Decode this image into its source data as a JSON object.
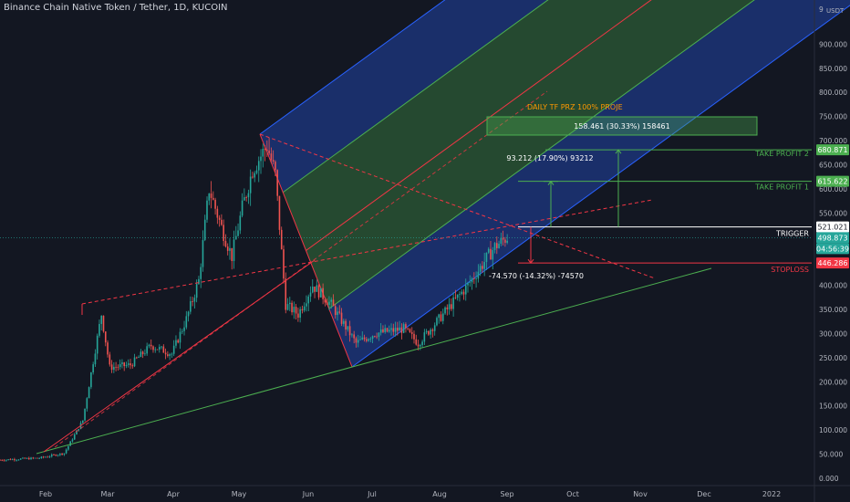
{
  "header": {
    "symbol_title": "Binance Chain Native Token / Tether, 1D, KUCOIN"
  },
  "chart_data": {
    "type": "candlestick",
    "symbol": "BNB/USDT",
    "interval": "1D",
    "exchange": "KUCOIN",
    "currency_label": "USDT",
    "y_axis_top_label": "9",
    "ylim": [
      0,
      1000
    ],
    "y_ticks": [
      0,
      50,
      100,
      150,
      200,
      250,
      300,
      350,
      400,
      450,
      500,
      550,
      600,
      650,
      700,
      750,
      800,
      850,
      900
    ],
    "y_tick_labels": [
      "0.000",
      "50.000",
      "100.000",
      "150.000",
      "200.000",
      "250.000",
      "300.000",
      "350.000",
      "400.000",
      "450.000",
      "500.000",
      "550.000",
      "600.000",
      "650.000",
      "700.000",
      "750.000",
      "800.000",
      "850.000",
      "900.000"
    ],
    "x_tick_labels": [
      "Feb",
      "Mar",
      "Apr",
      "May",
      "Jun",
      "Jul",
      "Aug",
      "Sep",
      "Oct",
      "Nov",
      "Dec",
      "2022"
    ],
    "price_path": [
      {
        "date": "2021-01-01",
        "price": 38
      },
      {
        "date": "2021-01-20",
        "price": 42
      },
      {
        "date": "2021-02-01",
        "price": 52
      },
      {
        "date": "2021-02-10",
        "price": 120
      },
      {
        "date": "2021-02-19",
        "price": 340
      },
      {
        "date": "2021-02-23",
        "price": 230
      },
      {
        "date": "2021-03-05",
        "price": 235
      },
      {
        "date": "2021-03-15",
        "price": 275
      },
      {
        "date": "2021-03-25",
        "price": 258
      },
      {
        "date": "2021-04-01",
        "price": 330
      },
      {
        "date": "2021-04-07",
        "price": 410
      },
      {
        "date": "2021-04-12",
        "price": 600
      },
      {
        "date": "2021-04-18",
        "price": 520
      },
      {
        "date": "2021-04-23",
        "price": 460
      },
      {
        "date": "2021-04-28",
        "price": 560
      },
      {
        "date": "2021-05-03",
        "price": 640
      },
      {
        "date": "2021-05-10",
        "price": 690
      },
      {
        "date": "2021-05-14",
        "price": 630
      },
      {
        "date": "2021-05-19",
        "price": 360
      },
      {
        "date": "2021-05-25",
        "price": 340
      },
      {
        "date": "2021-06-01",
        "price": 400
      },
      {
        "date": "2021-06-10",
        "price": 360
      },
      {
        "date": "2021-06-22",
        "price": 280
      },
      {
        "date": "2021-07-01",
        "price": 300
      },
      {
        "date": "2021-07-15",
        "price": 310
      },
      {
        "date": "2021-07-22",
        "price": 280
      },
      {
        "date": "2021-08-01",
        "price": 330
      },
      {
        "date": "2021-08-15",
        "price": 400
      },
      {
        "date": "2021-08-28",
        "price": 480
      },
      {
        "date": "2021-09-03",
        "price": 500
      }
    ],
    "annotations": {
      "channel_label": "DAILY TF PRZ 100% PROJE",
      "box_label": "158.461 (30.33%) 158461",
      "measure_up_label": "93.212 (17.90%) 93212",
      "measure_down_label": "-74.570 (-14.32%) -74570",
      "take_profit_2": "TAKE PROFIT 2",
      "take_profit_1": "TAKE PROFIT 1",
      "trigger": "TRIGGER",
      "stoploss": "STOPLOSS"
    },
    "price_tags": {
      "tp2": {
        "label": "680.871",
        "value": 680.871,
        "color": "#4caf50"
      },
      "tp1": {
        "label": "615.622",
        "value": 615.622,
        "color": "#4caf50"
      },
      "trigger": {
        "label": "521.021",
        "value": 521.021,
        "color": "#ffffff"
      },
      "last": {
        "label": "498.873",
        "value": 498.873,
        "color": "#26a69a"
      },
      "countdown": {
        "label": "04:56:39",
        "color": "#26a69a"
      },
      "stop": {
        "label": "446.286",
        "value": 446.286,
        "color": "#f23645"
      }
    },
    "colors": {
      "background": "#131722",
      "up": "#26a69a",
      "down": "#ef5350",
      "channel_blue": "#2962ff",
      "channel_green": "#4caf50",
      "line_red": "#f23645",
      "support_green": "#4caf50"
    },
    "grid": false,
    "legend": "none"
  }
}
